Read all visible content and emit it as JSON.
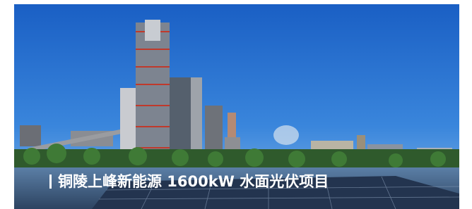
{
  "caption": "铜陵上峰新能源 1600kW 水面光伏项目"
}
